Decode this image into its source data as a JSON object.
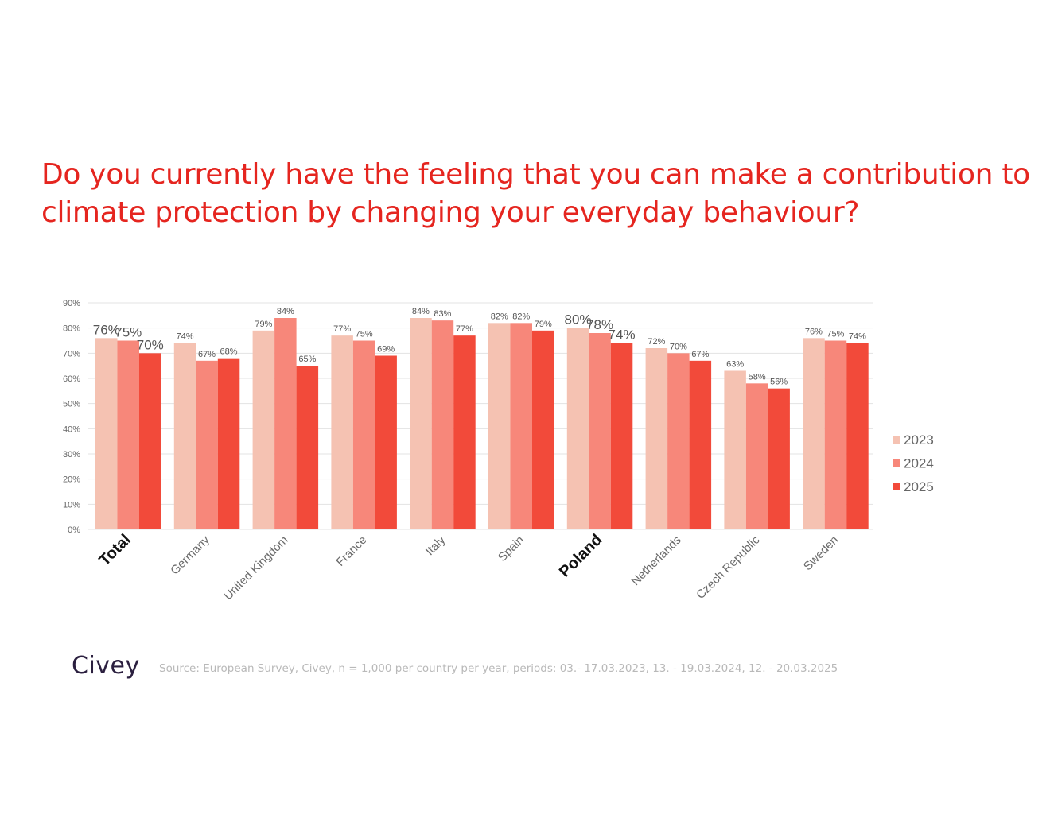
{
  "title_lines": [
    "Do you currently have the feeling that you can make a contribution to",
    "climate protection by changing your everyday behaviour?"
  ],
  "logo_text": "Civey",
  "source_text": "Source: European Survey, Civey, n = 1,000 per country per year, periods: 03.- 17.03.2023, 13. - 19.03.2024, 12. - 20.03.2025",
  "colors": {
    "title": "#e5251f",
    "series": [
      "#f5c2b2",
      "#f7877a",
      "#f24a3a"
    ],
    "grid": "#e3e3e3",
    "axis_text": "#666666"
  },
  "chart_data": {
    "type": "bar",
    "categories": [
      "Total",
      "Germany",
      "United Kingdom",
      "France",
      "Italy",
      "Spain",
      "Poland",
      "Netherlands",
      "Czech Republic",
      "Sweden"
    ],
    "highlighted_categories": [
      "Total",
      "Poland"
    ],
    "series": [
      {
        "name": "2023",
        "values": [
          76,
          74,
          79,
          77,
          84,
          82,
          80,
          72,
          63,
          76
        ],
        "labels": [
          "76%",
          "74%",
          "79%",
          "77%",
          "84%",
          "82%",
          "80%",
          "72%",
          "63%",
          "76%"
        ]
      },
      {
        "name": "2024",
        "values": [
          75,
          67,
          84,
          75,
          83,
          82,
          78,
          70,
          58,
          75
        ],
        "labels": [
          "75%",
          "67%",
          "84%",
          "75%",
          "83%",
          "82%",
          "78%",
          "70%",
          "58%",
          "75%"
        ]
      },
      {
        "name": "2025",
        "values": [
          70,
          68,
          65,
          69,
          77,
          79,
          74,
          67,
          56,
          74
        ],
        "labels": [
          "70%",
          "68%",
          "65%",
          "69%",
          "77%",
          "79%",
          "74%",
          "67%",
          "56%",
          "74%"
        ]
      }
    ],
    "ylim": [
      0,
      90
    ],
    "yticks": [
      0,
      10,
      20,
      30,
      40,
      50,
      60,
      70,
      80,
      90
    ],
    "ytick_labels": [
      "0%",
      "10%",
      "20%",
      "30%",
      "40%",
      "50%",
      "60%",
      "70%",
      "80%",
      "90%"
    ],
    "grid": true,
    "legend_position": "right"
  }
}
